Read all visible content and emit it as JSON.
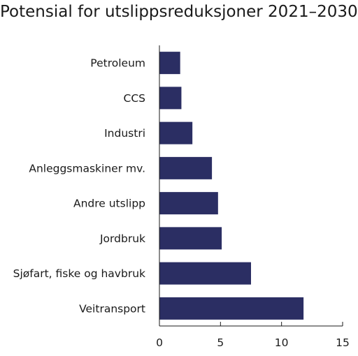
{
  "chart_data": {
    "type": "bar",
    "orientation": "horizontal",
    "title": "Potensial for utslippsreduksjoner 2021–2030",
    "categories": [
      "Petroleum",
      "CCS",
      "Industri",
      "Anleggsmaskiner mv.",
      "Andre utslipp",
      "Jordbruk",
      "Sjøfart, fiske og havbruk",
      "Veitransport"
    ],
    "values": [
      1.7,
      1.8,
      2.7,
      4.3,
      4.8,
      5.1,
      7.5,
      11.8
    ],
    "xlim": [
      0,
      15
    ],
    "xticks": [
      "0",
      "5",
      "10",
      "15"
    ],
    "grid": false,
    "bar_color": "#2b2e63",
    "axis_color": "#1a1a1a"
  }
}
